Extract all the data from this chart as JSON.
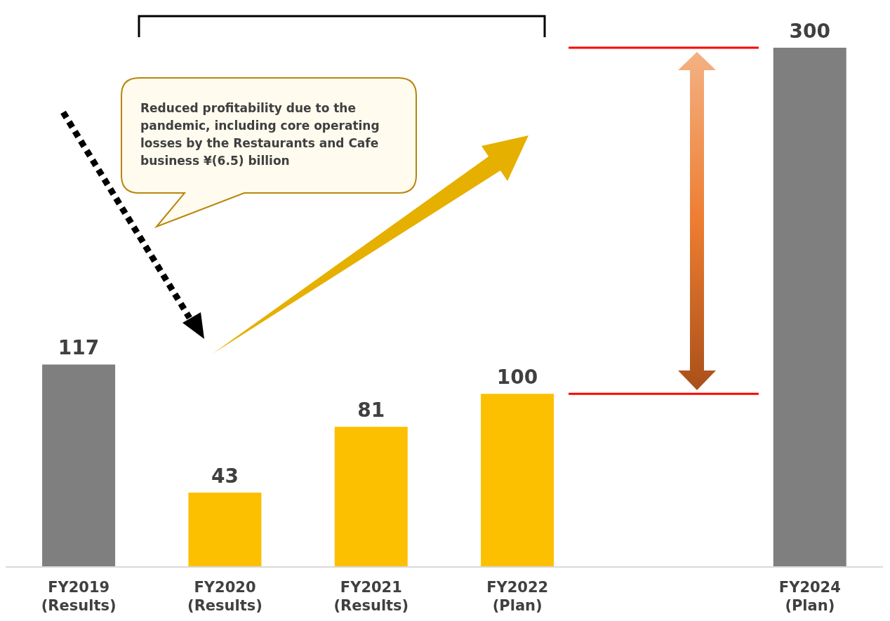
{
  "chart_data": {
    "type": "bar",
    "categories": [
      "FY2019 (Results)",
      "FY2020 (Results)",
      "FY2021 (Results)",
      "FY2022 (Plan)",
      null,
      "FY2024 (Plan)"
    ],
    "values": [
      117,
      43,
      81,
      100,
      null,
      300
    ],
    "colors": [
      "#7f7f7f",
      "#fcc000",
      "#fcc000",
      "#fcc000",
      "#fcc000",
      "#7f7f7f"
    ],
    "data_labels": true,
    "ref_lines": [
      {
        "axis": "y",
        "value": 100,
        "color": "#ff0000"
      },
      {
        "axis": "y",
        "value": 300,
        "color": "#ff0000"
      }
    ],
    "annotations": [
      "Reduced profitability due to the pandemic, including core operating losses by the Restaurants and Cafe business ¥(6.5) billion"
    ]
  }
}
